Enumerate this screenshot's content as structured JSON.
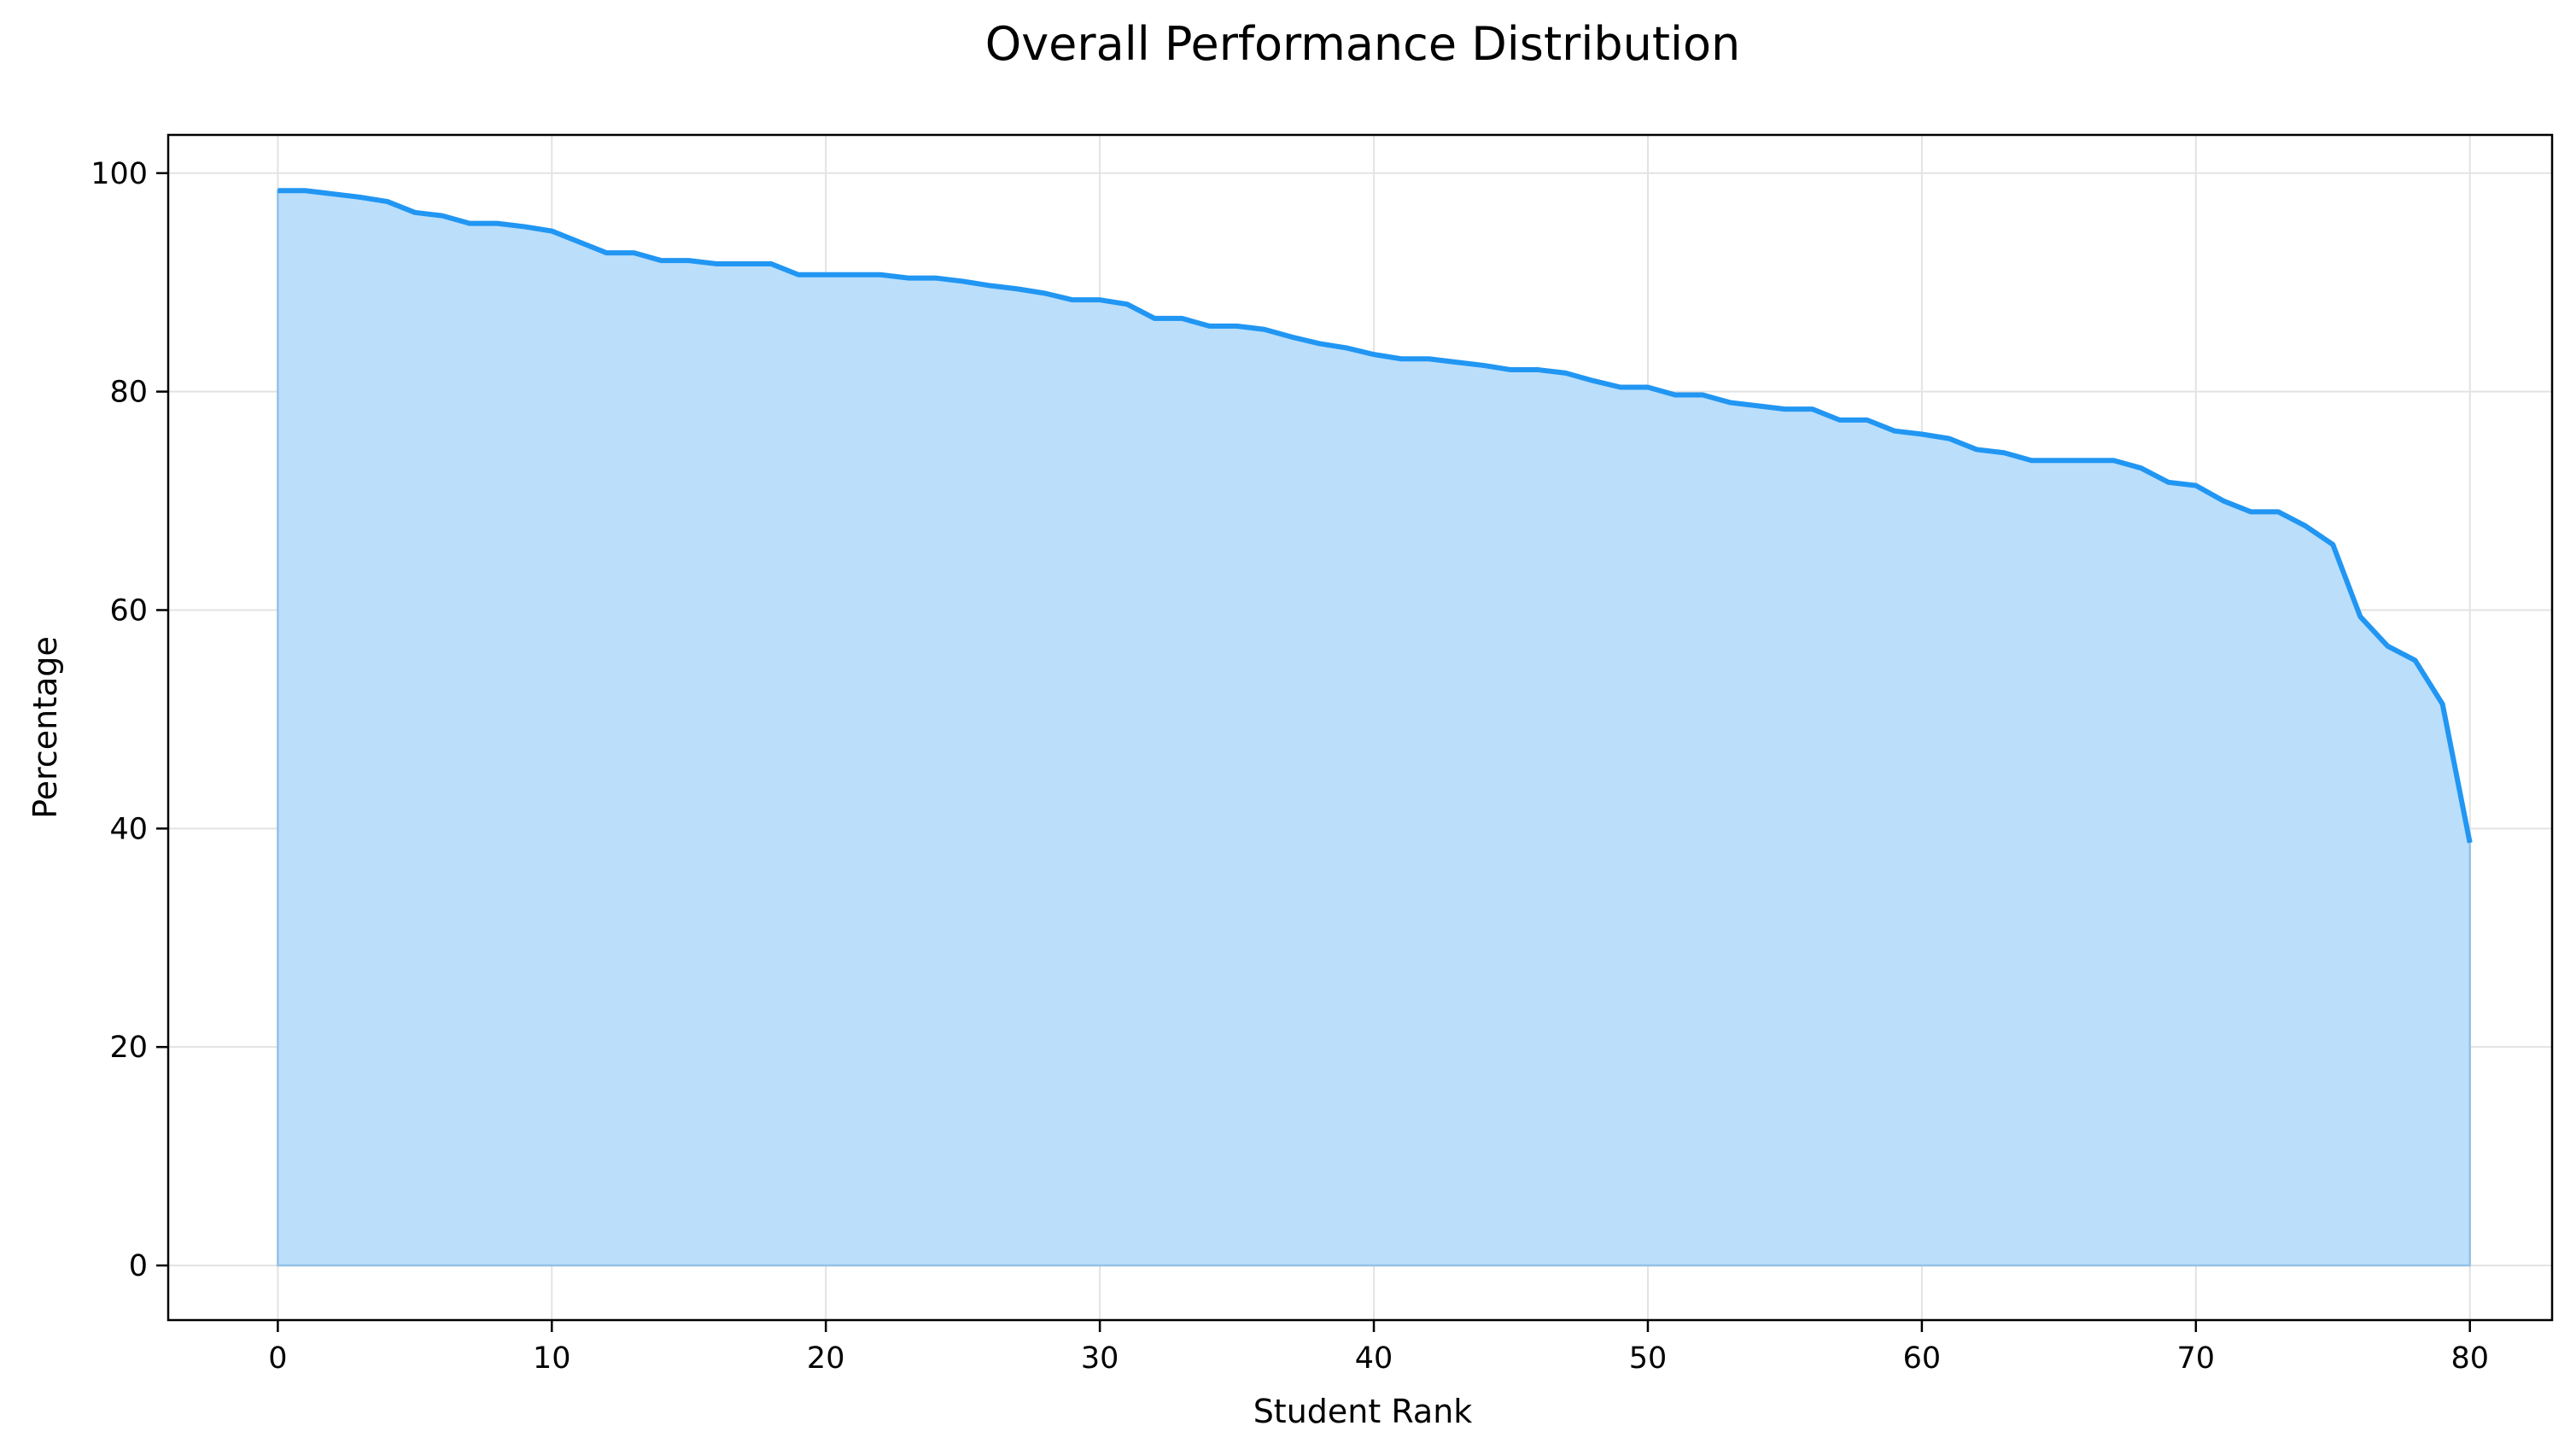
{
  "chart_data": {
    "type": "area",
    "title": "Overall Performance Distribution",
    "xlabel": "Student Rank",
    "ylabel": "Percentage",
    "xlim": [
      -4,
      83
    ],
    "ylim": [
      -5,
      103.5
    ],
    "xticks": [
      0,
      10,
      20,
      30,
      40,
      50,
      60,
      70,
      80
    ],
    "yticks": [
      0,
      20,
      40,
      60,
      80,
      100
    ],
    "grid": true,
    "legend": "none",
    "colors": {
      "line": "#2196f3",
      "fill": "#bbdefa",
      "fill_edge": "#93c2e6",
      "grid": "#e3e3e3",
      "frame": "#000000"
    },
    "x": [
      0,
      1,
      2,
      3,
      4,
      5,
      6,
      7,
      8,
      9,
      10,
      11,
      12,
      13,
      14,
      15,
      16,
      17,
      18,
      19,
      20,
      21,
      22,
      23,
      24,
      25,
      26,
      27,
      28,
      29,
      30,
      31,
      32,
      33,
      34,
      35,
      36,
      37,
      38,
      39,
      40,
      41,
      42,
      43,
      44,
      45,
      46,
      47,
      48,
      49,
      50,
      51,
      52,
      53,
      54,
      55,
      56,
      57,
      58,
      59,
      60,
      61,
      62,
      63,
      64,
      65,
      66,
      67,
      68,
      69,
      70,
      71,
      72,
      73,
      74,
      75,
      76,
      77,
      78,
      79,
      80
    ],
    "y": [
      98.4,
      98.4,
      98.1,
      97.8,
      97.4,
      96.4,
      96.1,
      95.4,
      95.4,
      95.1,
      94.7,
      93.7,
      92.7,
      92.7,
      92.0,
      92.0,
      91.7,
      91.7,
      91.7,
      90.7,
      90.7,
      90.7,
      90.7,
      90.4,
      90.4,
      90.1,
      89.7,
      89.4,
      89.0,
      88.4,
      88.4,
      88.0,
      86.7,
      86.7,
      86.0,
      86.0,
      85.7,
      85.0,
      84.4,
      84.0,
      83.4,
      83.0,
      83.0,
      82.7,
      82.4,
      82.0,
      82.0,
      81.7,
      81.0,
      80.4,
      80.4,
      79.7,
      79.7,
      79.0,
      78.7,
      78.4,
      78.4,
      77.4,
      77.4,
      76.4,
      76.1,
      75.7,
      74.7,
      74.4,
      73.7,
      73.7,
      73.7,
      73.7,
      73.0,
      71.7,
      71.4,
      70.0,
      69.0,
      69.0,
      67.7,
      66.0,
      59.4,
      56.7,
      55.4,
      51.4,
      38.7
    ]
  }
}
